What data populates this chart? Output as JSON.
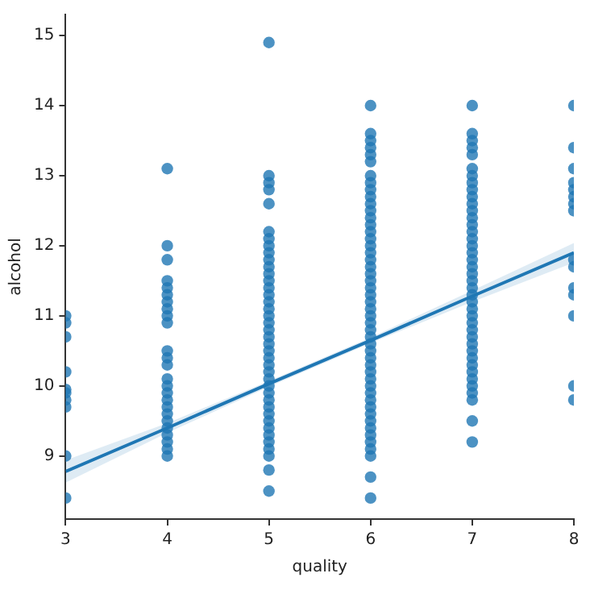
{
  "chart_data": {
    "type": "scatter",
    "xlabel": "quality",
    "ylabel": "alcohol",
    "xlim": [
      3,
      8
    ],
    "xticks": [
      3,
      4,
      5,
      6,
      7,
      8
    ],
    "ylim": [
      8.1,
      15.3
    ],
    "yticks": [
      9,
      10,
      11,
      12,
      13,
      14,
      15
    ],
    "series": [
      {
        "type": "scatter",
        "color": "#1f77b4",
        "marker": "circle",
        "x": [
          3,
          3,
          3,
          3,
          3,
          3,
          3,
          3,
          3,
          3,
          4,
          4,
          4,
          4,
          4,
          4,
          4,
          4,
          4,
          4,
          4,
          4,
          4,
          4,
          4,
          4,
          4,
          4,
          4,
          4,
          4,
          4,
          4,
          4,
          4,
          5,
          5,
          5,
          5,
          5,
          5,
          5,
          5,
          5,
          5,
          5,
          5,
          5,
          5,
          5,
          5,
          5,
          5,
          5,
          5,
          5,
          5,
          5,
          5,
          5,
          5,
          5,
          5,
          5,
          5,
          5,
          5,
          5,
          5,
          5,
          5,
          5,
          5,
          5,
          5,
          6,
          6,
          6,
          6,
          6,
          6,
          6,
          6,
          6,
          6,
          6,
          6,
          6,
          6,
          6,
          6,
          6,
          6,
          6,
          6,
          6,
          6,
          6,
          6,
          6,
          6,
          6,
          6,
          6,
          6,
          6,
          6,
          6,
          6,
          6,
          6,
          6,
          6,
          6,
          6,
          6,
          6,
          6,
          6,
          6,
          6,
          6,
          6,
          6,
          7,
          7,
          7,
          7,
          7,
          7,
          7,
          7,
          7,
          7,
          7,
          7,
          7,
          7,
          7,
          7,
          7,
          7,
          7,
          7,
          7,
          7,
          7,
          7,
          7,
          7,
          7,
          7,
          7,
          7,
          7,
          7,
          7,
          7,
          7,
          7,
          7,
          7,
          7,
          7,
          7,
          8,
          8,
          8,
          8,
          8,
          8,
          8,
          8,
          8,
          8,
          8,
          8,
          8,
          8,
          8
        ],
        "values": [
          11.0,
          10.9,
          10.7,
          10.2,
          9.95,
          9.9,
          9.8,
          9.7,
          9.0,
          8.4,
          13.1,
          12.0,
          11.8,
          11.5,
          11.4,
          11.3,
          11.2,
          11.1,
          11.0,
          10.9,
          10.5,
          10.4,
          10.3,
          10.1,
          10.0,
          9.9,
          9.8,
          9.7,
          9.6,
          9.5,
          9.4,
          9.3,
          9.2,
          9.1,
          9.0,
          14.9,
          13.0,
          12.9,
          12.8,
          12.6,
          12.2,
          12.1,
          12.0,
          11.9,
          11.8,
          11.7,
          11.6,
          11.5,
          11.4,
          11.3,
          11.2,
          11.1,
          11.0,
          10.9,
          10.8,
          10.7,
          10.6,
          10.5,
          10.4,
          10.3,
          10.2,
          10.1,
          10.0,
          9.9,
          9.8,
          9.7,
          9.6,
          9.5,
          9.4,
          9.3,
          9.2,
          9.1,
          9.0,
          8.8,
          8.5,
          14.0,
          13.6,
          13.5,
          13.4,
          13.3,
          13.2,
          13.0,
          12.9,
          12.8,
          12.7,
          12.6,
          12.5,
          12.4,
          12.3,
          12.2,
          12.1,
          12.0,
          11.9,
          11.8,
          11.7,
          11.6,
          11.5,
          11.4,
          11.3,
          11.2,
          11.1,
          11.0,
          10.9,
          10.8,
          10.7,
          10.6,
          10.5,
          10.4,
          10.3,
          10.2,
          10.1,
          10.0,
          9.9,
          9.8,
          9.7,
          9.6,
          9.5,
          9.4,
          9.3,
          9.2,
          9.1,
          9.0,
          8.7,
          8.4,
          14.0,
          13.6,
          13.5,
          13.4,
          13.3,
          13.1,
          13.0,
          12.9,
          12.8,
          12.7,
          12.6,
          12.5,
          12.4,
          12.3,
          12.2,
          12.1,
          12.0,
          11.9,
          11.8,
          11.7,
          11.6,
          11.5,
          11.4,
          11.3,
          11.2,
          11.1,
          11.0,
          10.9,
          10.8,
          10.7,
          10.6,
          10.5,
          10.4,
          10.3,
          10.2,
          10.1,
          10.0,
          9.9,
          9.8,
          9.5,
          9.2,
          14.0,
          13.4,
          13.1,
          12.9,
          12.8,
          12.7,
          12.6,
          12.5,
          11.8,
          11.7,
          11.4,
          11.3,
          11.0,
          10.0,
          9.8
        ]
      },
      {
        "type": "line",
        "color": "#1f77b4",
        "marker": "none",
        "x": [
          3,
          4,
          5,
          6,
          7,
          8
        ],
        "values": [
          8.78,
          9.4,
          10.03,
          10.65,
          11.28,
          11.9
        ],
        "lower": [
          8.62,
          9.33,
          9.99,
          10.61,
          11.2,
          11.76
        ],
        "upper": [
          8.94,
          9.47,
          10.07,
          10.69,
          11.36,
          12.04
        ]
      }
    ]
  }
}
